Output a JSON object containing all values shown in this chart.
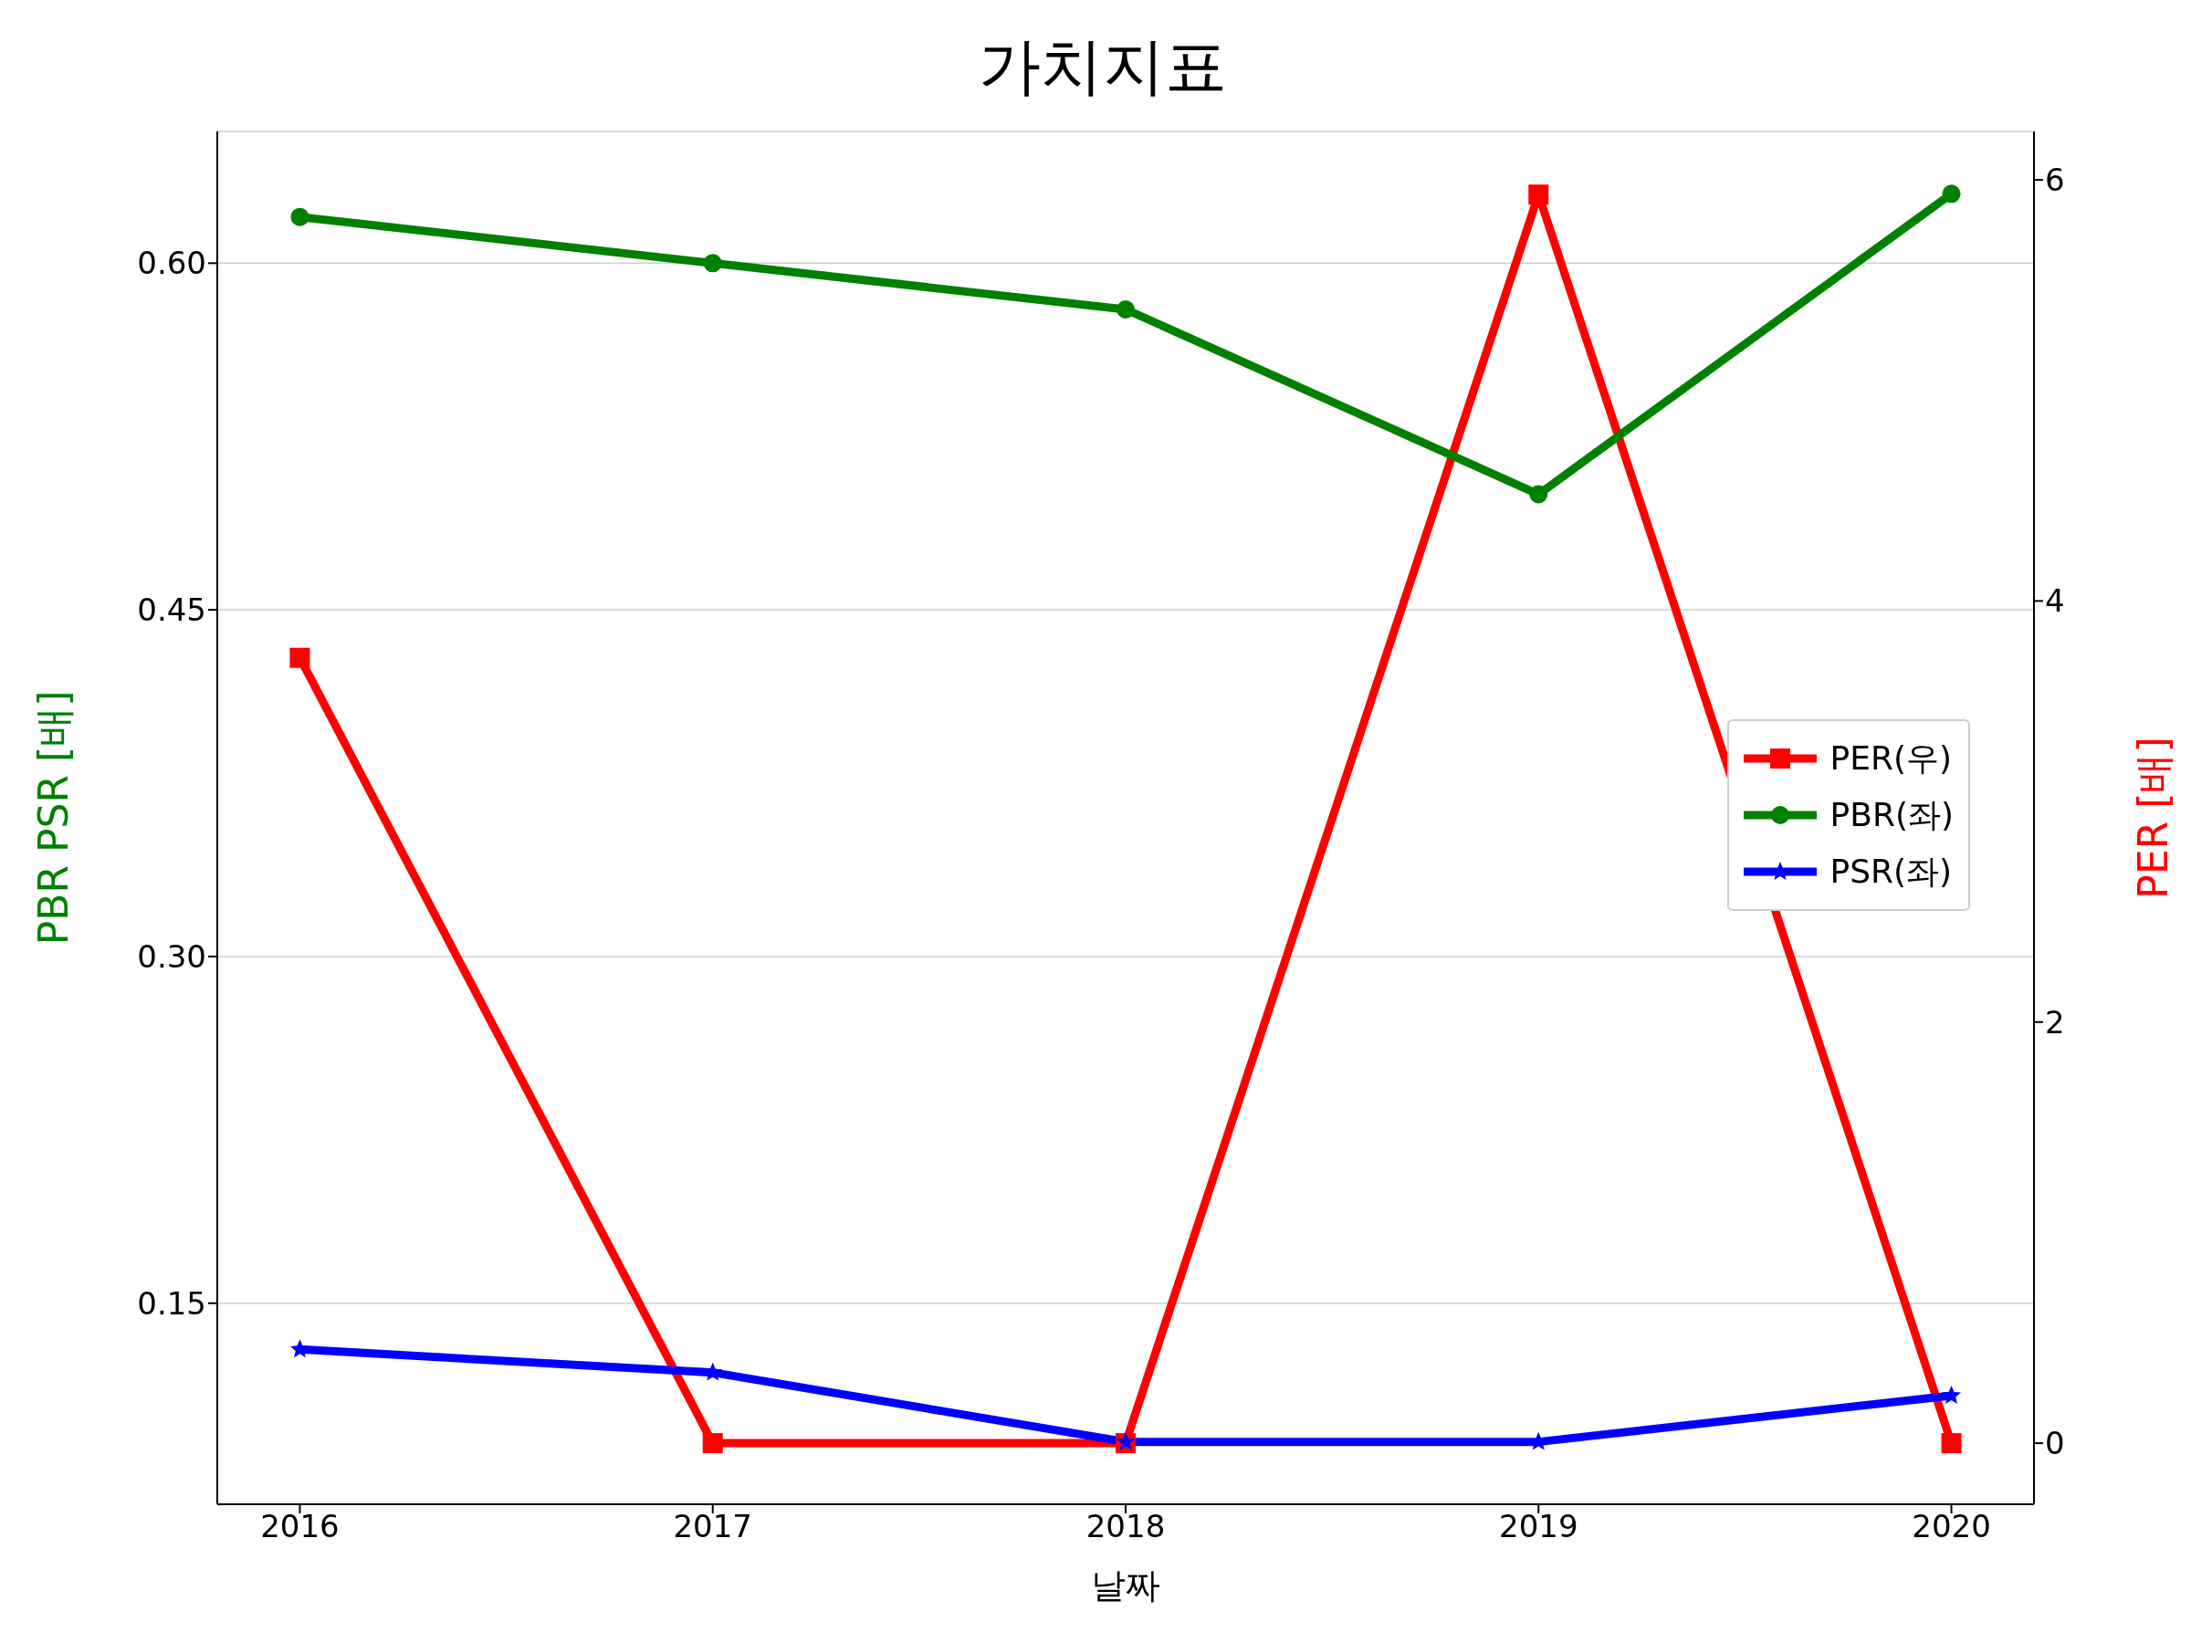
{
  "chart_data": {
    "type": "line",
    "title": "가치지표",
    "xlabel": "날짜",
    "ylabel": "PBR PSR [배]",
    "y2label": "PER [배]",
    "x": [
      2016,
      2017,
      2018,
      2019,
      2020
    ],
    "xlim": [
      2015.8,
      2020.2
    ],
    "xticks": [
      2016,
      2017,
      2018,
      2019,
      2020
    ],
    "ylim": [
      0.063,
      0.657
    ],
    "yticks": [
      {
        "value": 0.15,
        "label": "0.15"
      },
      {
        "value": 0.3,
        "label": "0.30"
      },
      {
        "value": 0.45,
        "label": "0.45"
      },
      {
        "value": 0.6,
        "label": "0.60"
      }
    ],
    "y2lim": [
      -0.29,
      6.23
    ],
    "y2ticks": [
      0,
      2,
      4,
      6
    ],
    "grid": "y",
    "legend": "right",
    "line_style": "solid",
    "series": [
      {
        "name": "PER(우)",
        "color": "#ff0000",
        "axis": "y2",
        "marker": "square",
        "values": [
          3.73,
          0,
          0,
          5.93,
          0
        ]
      },
      {
        "name": "PBR(좌)",
        "color": "#008000",
        "marker": "circle",
        "values": [
          0.62,
          0.6,
          0.58,
          0.5,
          0.63
        ]
      },
      {
        "name": "PSR(좌)",
        "color": "#0000ff",
        "marker": "star",
        "values": [
          0.13,
          0.12,
          0.09,
          0.09,
          0.11
        ]
      }
    ]
  }
}
